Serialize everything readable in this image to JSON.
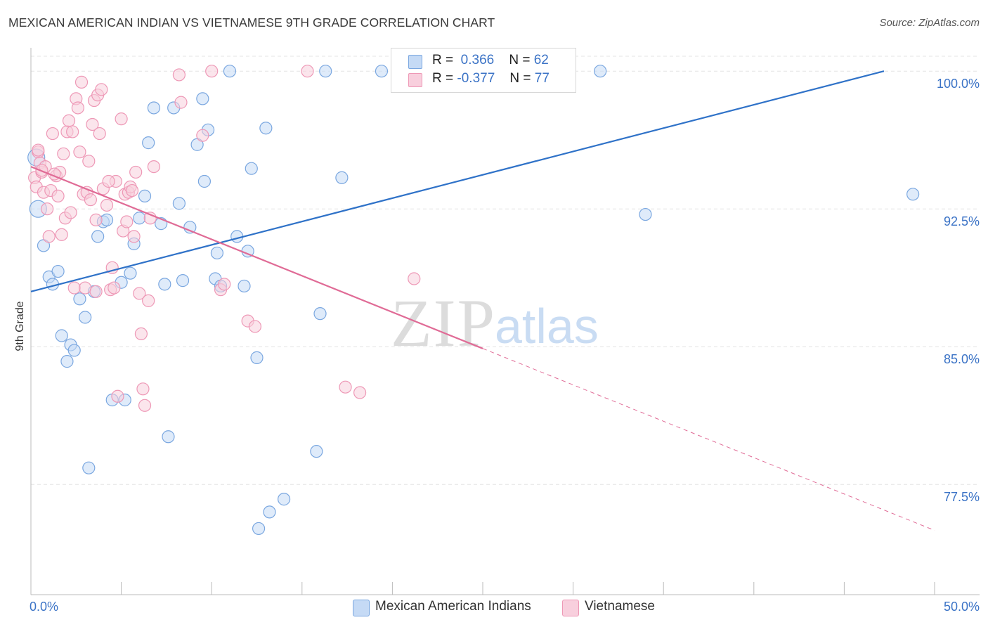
{
  "title": "MEXICAN AMERICAN INDIAN VS VIETNAMESE 9TH GRADE CORRELATION CHART",
  "source": "Source: ZipAtlas.com",
  "watermark": {
    "zip": "ZIP",
    "atlas": "atlas"
  },
  "legend": {
    "r_label": "R =",
    "n_label": "N =",
    "rows": [
      {
        "r": "0.366",
        "n": "62",
        "color": "#a9c8f0",
        "border": "#7aa7e0"
      },
      {
        "r": "-0.377",
        "n": "77",
        "color": "#f7c0d2",
        "border": "#ee98b6"
      }
    ]
  },
  "chart_data": {
    "type": "scatter",
    "title": "MEXICAN AMERICAN INDIAN VS VIETNAMESE 9TH GRADE CORRELATION CHART",
    "xlabel": "",
    "ylabel": "9th Grade",
    "xlim": [
      0,
      50
    ],
    "ylim": [
      71.5,
      101.5
    ],
    "x_tick_labels": [
      "0.0%",
      "50.0%"
    ],
    "y_ticks": [
      {
        "value": 100.0,
        "label": "100.0%"
      },
      {
        "value": 92.5,
        "label": "92.5%"
      },
      {
        "value": 85.0,
        "label": "85.0%"
      },
      {
        "value": 77.5,
        "label": "77.5%"
      }
    ],
    "grid": true,
    "legend_position": "top-center",
    "series": [
      {
        "name": "Mexican American Indians",
        "color": "#7aa7e0",
        "fill": "#c5daf5",
        "line_color": "#2f72c8",
        "trend": {
          "x": [
            0,
            47.2
          ],
          "y": [
            88.0,
            100.0
          ],
          "dashed_to": null
        },
        "points": [
          [
            0.3,
            95.3
          ],
          [
            0.4,
            92.5
          ],
          [
            0.7,
            90.5
          ],
          [
            1.0,
            88.8
          ],
          [
            1.2,
            88.4
          ],
          [
            1.5,
            89.1
          ],
          [
            1.7,
            85.6
          ],
          [
            2.0,
            84.2
          ],
          [
            2.2,
            85.1
          ],
          [
            2.4,
            84.8
          ],
          [
            2.7,
            87.6
          ],
          [
            3.0,
            86.6
          ],
          [
            3.2,
            78.4
          ],
          [
            3.5,
            88.0
          ],
          [
            3.7,
            91.0
          ],
          [
            4.0,
            91.8
          ],
          [
            4.2,
            91.9
          ],
          [
            4.5,
            82.1
          ],
          [
            5.0,
            88.5
          ],
          [
            5.2,
            82.1
          ],
          [
            5.5,
            89.0
          ],
          [
            5.7,
            90.6
          ],
          [
            6.0,
            92.0
          ],
          [
            6.3,
            93.2
          ],
          [
            6.5,
            96.1
          ],
          [
            6.8,
            98.0
          ],
          [
            7.2,
            91.7
          ],
          [
            7.4,
            88.4
          ],
          [
            7.6,
            80.1
          ],
          [
            7.9,
            98.0
          ],
          [
            8.2,
            92.8
          ],
          [
            8.4,
            88.6
          ],
          [
            8.8,
            91.5
          ],
          [
            9.2,
            96.0
          ],
          [
            9.5,
            98.5
          ],
          [
            9.6,
            94.0
          ],
          [
            9.8,
            96.8
          ],
          [
            10.2,
            88.7
          ],
          [
            10.3,
            90.1
          ],
          [
            10.5,
            88.3
          ],
          [
            11.0,
            100.0
          ],
          [
            11.4,
            91.0
          ],
          [
            11.8,
            88.3
          ],
          [
            12.0,
            90.2
          ],
          [
            12.2,
            94.7
          ],
          [
            12.5,
            84.4
          ],
          [
            12.6,
            75.1
          ],
          [
            13.0,
            96.9
          ],
          [
            13.2,
            76.0
          ],
          [
            14.0,
            76.7
          ],
          [
            15.8,
            79.3
          ],
          [
            16.0,
            86.8
          ],
          [
            16.3,
            100.0
          ],
          [
            17.2,
            94.2
          ],
          [
            19.4,
            100.0
          ],
          [
            27.3,
            100.0
          ],
          [
            28.0,
            100.0
          ],
          [
            29.3,
            100.0
          ],
          [
            31.5,
            100.0
          ],
          [
            34.0,
            92.2
          ],
          [
            48.8,
            93.3
          ],
          [
            22.5,
            100.0
          ]
        ]
      },
      {
        "name": "Vietnamese",
        "color": "#ee98b6",
        "fill": "#f8cfdd",
        "line_color": "#e06b96",
        "trend": {
          "x": [
            0,
            25.0
          ],
          "y": [
            94.8,
            84.9
          ],
          "dashed_to": {
            "x": 50,
            "y": 75.0
          }
        },
        "points": [
          [
            0.2,
            94.2
          ],
          [
            0.3,
            93.7
          ],
          [
            0.4,
            95.6
          ],
          [
            0.5,
            95.0
          ],
          [
            0.6,
            94.5
          ],
          [
            0.7,
            93.4
          ],
          [
            0.8,
            94.8
          ],
          [
            0.9,
            92.5
          ],
          [
            1.0,
            91.0
          ],
          [
            1.1,
            93.5
          ],
          [
            1.2,
            96.6
          ],
          [
            1.4,
            94.3
          ],
          [
            1.5,
            93.2
          ],
          [
            1.6,
            94.5
          ],
          [
            1.7,
            91.1
          ],
          [
            1.8,
            95.5
          ],
          [
            1.9,
            92.0
          ],
          [
            2.0,
            96.7
          ],
          [
            2.1,
            97.3
          ],
          [
            2.2,
            92.3
          ],
          [
            2.3,
            96.7
          ],
          [
            2.4,
            88.2
          ],
          [
            2.5,
            98.5
          ],
          [
            2.6,
            98.0
          ],
          [
            2.7,
            95.6
          ],
          [
            2.8,
            99.4
          ],
          [
            2.9,
            93.3
          ],
          [
            3.0,
            88.2
          ],
          [
            3.1,
            93.4
          ],
          [
            3.2,
            95.1
          ],
          [
            3.3,
            93.0
          ],
          [
            3.4,
            97.1
          ],
          [
            3.5,
            98.4
          ],
          [
            3.6,
            91.9
          ],
          [
            3.7,
            98.7
          ],
          [
            3.8,
            96.6
          ],
          [
            3.9,
            99.0
          ],
          [
            4.0,
            93.6
          ],
          [
            4.2,
            92.7
          ],
          [
            4.4,
            88.1
          ],
          [
            4.5,
            89.3
          ],
          [
            4.6,
            88.2
          ],
          [
            4.7,
            94.0
          ],
          [
            4.8,
            82.3
          ],
          [
            5.0,
            97.4
          ],
          [
            5.1,
            91.3
          ],
          [
            5.2,
            93.3
          ],
          [
            5.3,
            91.8
          ],
          [
            5.4,
            93.4
          ],
          [
            5.5,
            93.7
          ],
          [
            5.7,
            91.0
          ],
          [
            5.8,
            94.5
          ],
          [
            6.0,
            87.9
          ],
          [
            6.1,
            85.7
          ],
          [
            6.2,
            82.7
          ],
          [
            6.3,
            81.8
          ],
          [
            6.5,
            87.5
          ],
          [
            6.8,
            94.8
          ],
          [
            8.2,
            99.8
          ],
          [
            8.3,
            98.3
          ],
          [
            9.5,
            96.5
          ],
          [
            10.0,
            100.0
          ],
          [
            10.5,
            88.1
          ],
          [
            10.7,
            88.4
          ],
          [
            12.0,
            86.4
          ],
          [
            12.4,
            86.1
          ],
          [
            15.3,
            100.0
          ],
          [
            17.4,
            82.8
          ],
          [
            18.2,
            82.5
          ],
          [
            21.2,
            88.7
          ],
          [
            0.4,
            95.7
          ],
          [
            0.6,
            94.6
          ],
          [
            1.3,
            94.4
          ],
          [
            4.3,
            94.0
          ],
          [
            5.6,
            93.5
          ],
          [
            6.6,
            92.0
          ],
          [
            3.6,
            88.0
          ]
        ]
      }
    ]
  }
}
